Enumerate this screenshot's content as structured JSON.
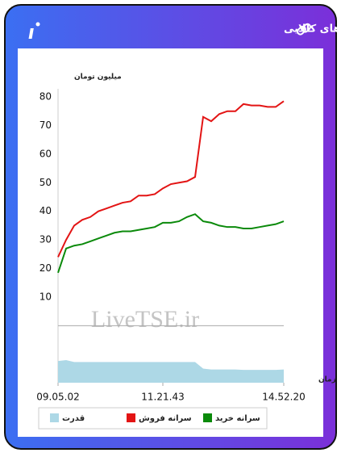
{
  "chart_data": {
    "type": "line",
    "title": "سرانه ی خرید و فروش حقیقی در صندوق های کالایی",
    "y_label": "میلیون تومان",
    "x_label": "زمان",
    "watermark": "LiveTSE.ir",
    "categories": [
      "09.05.02",
      null,
      null,
      null,
      null,
      null,
      null,
      null,
      null,
      null,
      null,
      null,
      null,
      "11.21.43",
      null,
      null,
      null,
      null,
      null,
      null,
      null,
      null,
      null,
      null,
      null,
      null,
      null,
      null,
      "14.52.20"
    ],
    "ylim": [
      0,
      80
    ],
    "yticks": [
      10,
      20,
      30,
      40,
      50,
      60,
      70,
      80
    ],
    "y2lim": [
      0,
      3
    ],
    "series": [
      {
        "name": "سرانه خرید",
        "color": "#0b8a0b",
        "values": [
          18.5,
          27,
          28,
          28.5,
          29.5,
          30.5,
          31.5,
          32.5,
          33,
          33,
          33.5,
          34,
          34.5,
          36,
          36,
          36.5,
          38,
          39,
          36.5,
          36,
          35,
          34.5,
          34.5,
          34,
          34,
          34.5,
          35,
          35.5,
          36.5
        ]
      },
      {
        "name": "سرانه فروش",
        "color": "#e31414",
        "values": [
          24,
          30,
          35,
          37,
          38,
          40,
          41,
          42,
          43,
          43.5,
          45.5,
          45.5,
          46,
          48,
          49.5,
          50,
          50.5,
          52,
          73,
          71.5,
          74,
          75,
          75,
          77.5,
          77,
          77,
          76.5,
          76.5,
          78.5
        ]
      },
      {
        "name": "قدرت",
        "color": "#add8e6",
        "type": "area",
        "axis": "y2",
        "values": [
          1.15,
          1.2,
          1.1,
          1.1,
          1.1,
          1.1,
          1.1,
          1.1,
          1.1,
          1.1,
          1.1,
          1.1,
          1.1,
          1.1,
          1.1,
          1.1,
          1.1,
          1.1,
          0.75,
          0.7,
          0.7,
          0.7,
          0.7,
          0.68,
          0.68,
          0.68,
          0.68,
          0.68,
          0.7
        ]
      }
    ]
  }
}
